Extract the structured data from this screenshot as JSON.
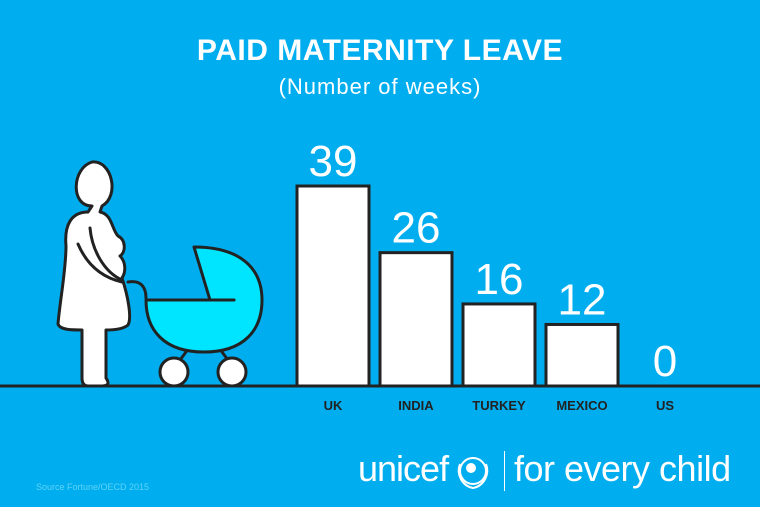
{
  "chart_data": {
    "type": "bar",
    "title": "PAID MATERNITY LEAVE",
    "subtitle": "(Number of weeks)",
    "categories": [
      "UK",
      "INDIA",
      "TURKEY",
      "MEXICO",
      "US"
    ],
    "values": [
      39,
      26,
      16,
      12,
      0
    ],
    "ylim": [
      0,
      39
    ],
    "grid": false,
    "xlabel": "",
    "ylabel": ""
  },
  "source": "Source Fortune/OECD 2015",
  "logo": {
    "brand": "unicef",
    "tagline": "for every child"
  },
  "colors": {
    "background": "#00aeef",
    "bar": "#ffffff",
    "stroke": "#222222",
    "pram": "#00e5ff"
  }
}
